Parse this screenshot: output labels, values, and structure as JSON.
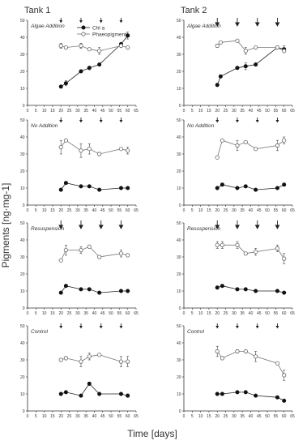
{
  "figure": {
    "column_titles": [
      "Tank 1",
      "Tank 2"
    ],
    "xlabel": "Time [days]",
    "ylabel": "Pigments [ng·mg-1]",
    "legend": {
      "series": [
        "Chl a",
        "Phaeopigments"
      ]
    }
  },
  "chart_data": [
    {
      "type": "line",
      "panel": "Tank 1 - Algae Addition",
      "label": "Algae Addition",
      "xlim": [
        0,
        65
      ],
      "ylim": [
        0,
        50
      ],
      "xticks": [
        0,
        5,
        10,
        15,
        20,
        25,
        30,
        35,
        40,
        45,
        50,
        55,
        60,
        65
      ],
      "yticks": [
        0,
        10,
        20,
        30,
        40,
        50
      ],
      "arrows": [
        20,
        32,
        44,
        56
      ],
      "arrow_style": "small",
      "series": [
        {
          "name": "Chl a",
          "x": [
            20,
            23,
            32,
            37,
            43,
            56,
            60
          ],
          "y": [
            11,
            13,
            20,
            22,
            24,
            36,
            41
          ],
          "err": [
            0,
            1.5,
            0,
            1,
            0,
            0,
            2
          ]
        },
        {
          "name": "Phaeopigments",
          "x": [
            20,
            23,
            32,
            37,
            43,
            56,
            60
          ],
          "y": [
            35,
            34,
            35,
            33,
            32,
            35,
            34
          ],
          "err": [
            1.5,
            0,
            1.5,
            0,
            2,
            0,
            0
          ]
        }
      ]
    },
    {
      "type": "line",
      "panel": "Tank 2 - Algae Addition",
      "label": "Algae Addition",
      "xlim": [
        0,
        65
      ],
      "ylim": [
        0,
        50
      ],
      "xticks": [
        0,
        5,
        10,
        15,
        20,
        25,
        30,
        35,
        40,
        45,
        50,
        55,
        60,
        65
      ],
      "yticks": [
        0,
        10,
        20,
        30,
        40,
        50
      ],
      "arrows": [
        20,
        32,
        44,
        56
      ],
      "arrow_style": "large",
      "series": [
        {
          "name": "Chl a",
          "x": [
            20,
            22,
            32,
            37,
            43,
            56,
            60
          ],
          "y": [
            12,
            17,
            22,
            23,
            24,
            34,
            33
          ],
          "err": [
            0,
            0,
            0,
            2,
            0,
            0,
            2
          ]
        },
        {
          "name": "Phaeopigments",
          "x": [
            20,
            22,
            32,
            37,
            43,
            56,
            60
          ],
          "y": [
            35,
            37,
            38,
            32,
            34,
            34,
            32
          ],
          "err": [
            1,
            0,
            0,
            2,
            0,
            0,
            0
          ]
        }
      ]
    },
    {
      "type": "line",
      "panel": "Tank 1 - No Addition",
      "label": "No Addition",
      "xlim": [
        0,
        65
      ],
      "ylim": [
        0,
        50
      ],
      "xticks": [
        0,
        5,
        10,
        15,
        20,
        25,
        30,
        35,
        40,
        45,
        50,
        55,
        60,
        65
      ],
      "yticks": [
        0,
        10,
        20,
        30,
        40,
        50
      ],
      "arrows": [
        20,
        32,
        44,
        56
      ],
      "arrow_style": "small",
      "series": [
        {
          "name": "Chl a",
          "x": [
            20,
            23,
            32,
            37,
            43,
            56,
            60
          ],
          "y": [
            9,
            13,
            11,
            11,
            9,
            10,
            10
          ],
          "err": [
            0,
            0,
            0,
            0,
            0,
            0,
            0
          ]
        },
        {
          "name": "Phaeopigments",
          "x": [
            20,
            23,
            32,
            37,
            43,
            56,
            60
          ],
          "y": [
            34,
            38,
            32,
            33,
            30,
            33,
            32
          ],
          "err": [
            4,
            0,
            4,
            3,
            1,
            0,
            2
          ]
        }
      ]
    },
    {
      "type": "line",
      "panel": "Tank 2 - No Addition",
      "label": "No Addition",
      "xlim": [
        0,
        65
      ],
      "ylim": [
        0,
        50
      ],
      "xticks": [
        0,
        5,
        10,
        15,
        20,
        25,
        30,
        35,
        40,
        45,
        50,
        55,
        60,
        65
      ],
      "yticks": [
        0,
        10,
        20,
        30,
        40,
        50
      ],
      "arrows": [
        20,
        32,
        44,
        56
      ],
      "arrow_style": "small",
      "series": [
        {
          "name": "Chl a",
          "x": [
            20,
            23,
            32,
            37,
            43,
            56,
            60
          ],
          "y": [
            10,
            12,
            10,
            11,
            9,
            10,
            12
          ],
          "err": [
            0,
            0,
            0,
            0,
            0,
            0,
            0
          ]
        },
        {
          "name": "Phaeopigments",
          "x": [
            20,
            23,
            32,
            37,
            43,
            56,
            60
          ],
          "y": [
            28,
            38,
            35,
            37,
            33,
            35,
            38
          ],
          "err": [
            0,
            0,
            3,
            0,
            0,
            3,
            2
          ]
        }
      ]
    },
    {
      "type": "line",
      "panel": "Tank 1 - Resuspension",
      "label": "Resuspension",
      "xlim": [
        0,
        65
      ],
      "ylim": [
        0,
        50
      ],
      "xticks": [
        0,
        5,
        10,
        15,
        20,
        25,
        30,
        35,
        40,
        45,
        50,
        55,
        60,
        65
      ],
      "yticks": [
        0,
        10,
        20,
        30,
        40,
        50
      ],
      "arrows": [
        20,
        32,
        44,
        56
      ],
      "arrow_style": "large",
      "series": [
        {
          "name": "Chl a",
          "x": [
            20,
            23,
            32,
            37,
            43,
            56,
            60
          ],
          "y": [
            9,
            13,
            11,
            11,
            9,
            10,
            10
          ],
          "err": [
            0,
            0,
            0,
            0,
            0,
            0,
            0
          ]
        },
        {
          "name": "Phaeopigments",
          "x": [
            20,
            23,
            32,
            37,
            43,
            56,
            60
          ],
          "y": [
            28,
            34,
            34,
            36,
            30,
            32,
            31
          ],
          "err": [
            0,
            3,
            2,
            0,
            0,
            2,
            0
          ]
        }
      ]
    },
    {
      "type": "line",
      "panel": "Tank 2 - Resuspension",
      "label": "Resuspension",
      "xlim": [
        0,
        65
      ],
      "ylim": [
        0,
        50
      ],
      "xticks": [
        0,
        5,
        10,
        15,
        20,
        25,
        30,
        35,
        40,
        45,
        50,
        55,
        60,
        65
      ],
      "yticks": [
        0,
        10,
        20,
        30,
        40,
        50
      ],
      "arrows": [
        20,
        32,
        44,
        56
      ],
      "arrow_style": "large",
      "series": [
        {
          "name": "Chl a",
          "x": [
            20,
            23,
            32,
            37,
            43,
            56,
            60
          ],
          "y": [
            12,
            13,
            11,
            11,
            10,
            10,
            9
          ],
          "err": [
            0,
            0,
            0,
            0,
            0,
            0,
            0
          ]
        },
        {
          "name": "Phaeopigments",
          "x": [
            20,
            23,
            32,
            37,
            43,
            56,
            60
          ],
          "y": [
            37,
            37,
            37,
            32,
            33,
            35,
            29
          ],
          "err": [
            2,
            2,
            2,
            0,
            2,
            2,
            3
          ]
        }
      ]
    },
    {
      "type": "line",
      "panel": "Tank 1 - Control",
      "label": "Control",
      "xlim": [
        0,
        65
      ],
      "ylim": [
        0,
        50
      ],
      "xticks": [
        0,
        5,
        10,
        15,
        20,
        25,
        30,
        35,
        40,
        45,
        50,
        55,
        60,
        65
      ],
      "yticks": [
        0,
        10,
        20,
        30,
        40,
        50
      ],
      "arrows": [
        20,
        32,
        44,
        56
      ],
      "arrow_style": "small",
      "series": [
        {
          "name": "Chl a",
          "x": [
            20,
            23,
            32,
            37,
            43,
            56,
            60
          ],
          "y": [
            10,
            11,
            9,
            16,
            10,
            10,
            9
          ],
          "err": [
            0,
            0,
            0,
            1,
            0,
            0,
            1
          ]
        },
        {
          "name": "Phaeopigments",
          "x": [
            20,
            23,
            32,
            37,
            43,
            56,
            60
          ],
          "y": [
            30,
            31,
            29,
            32,
            33,
            29,
            29
          ],
          "err": [
            0,
            1,
            3,
            2,
            0,
            3,
            3
          ]
        }
      ]
    },
    {
      "type": "line",
      "panel": "Tank 2 - Control",
      "label": "Control",
      "xlim": [
        0,
        65
      ],
      "ylim": [
        0,
        50
      ],
      "xticks": [
        0,
        5,
        10,
        15,
        20,
        25,
        30,
        35,
        40,
        45,
        50,
        55,
        60,
        65
      ],
      "yticks": [
        0,
        10,
        20,
        30,
        40,
        50
      ],
      "arrows": [
        20,
        32,
        44,
        56
      ],
      "arrow_style": "small",
      "series": [
        {
          "name": "Chl a",
          "x": [
            20,
            23,
            32,
            37,
            43,
            56,
            60
          ],
          "y": [
            10,
            10,
            11,
            11,
            9,
            8,
            6
          ],
          "err": [
            0,
            0,
            0,
            0,
            0,
            0,
            0
          ]
        },
        {
          "name": "Phaeopigments",
          "x": [
            20,
            23,
            32,
            37,
            43,
            56,
            60
          ],
          "y": [
            35,
            31,
            35,
            35,
            32,
            28,
            21
          ],
          "err": [
            3,
            0,
            1,
            0,
            3,
            0,
            3
          ]
        }
      ]
    }
  ]
}
